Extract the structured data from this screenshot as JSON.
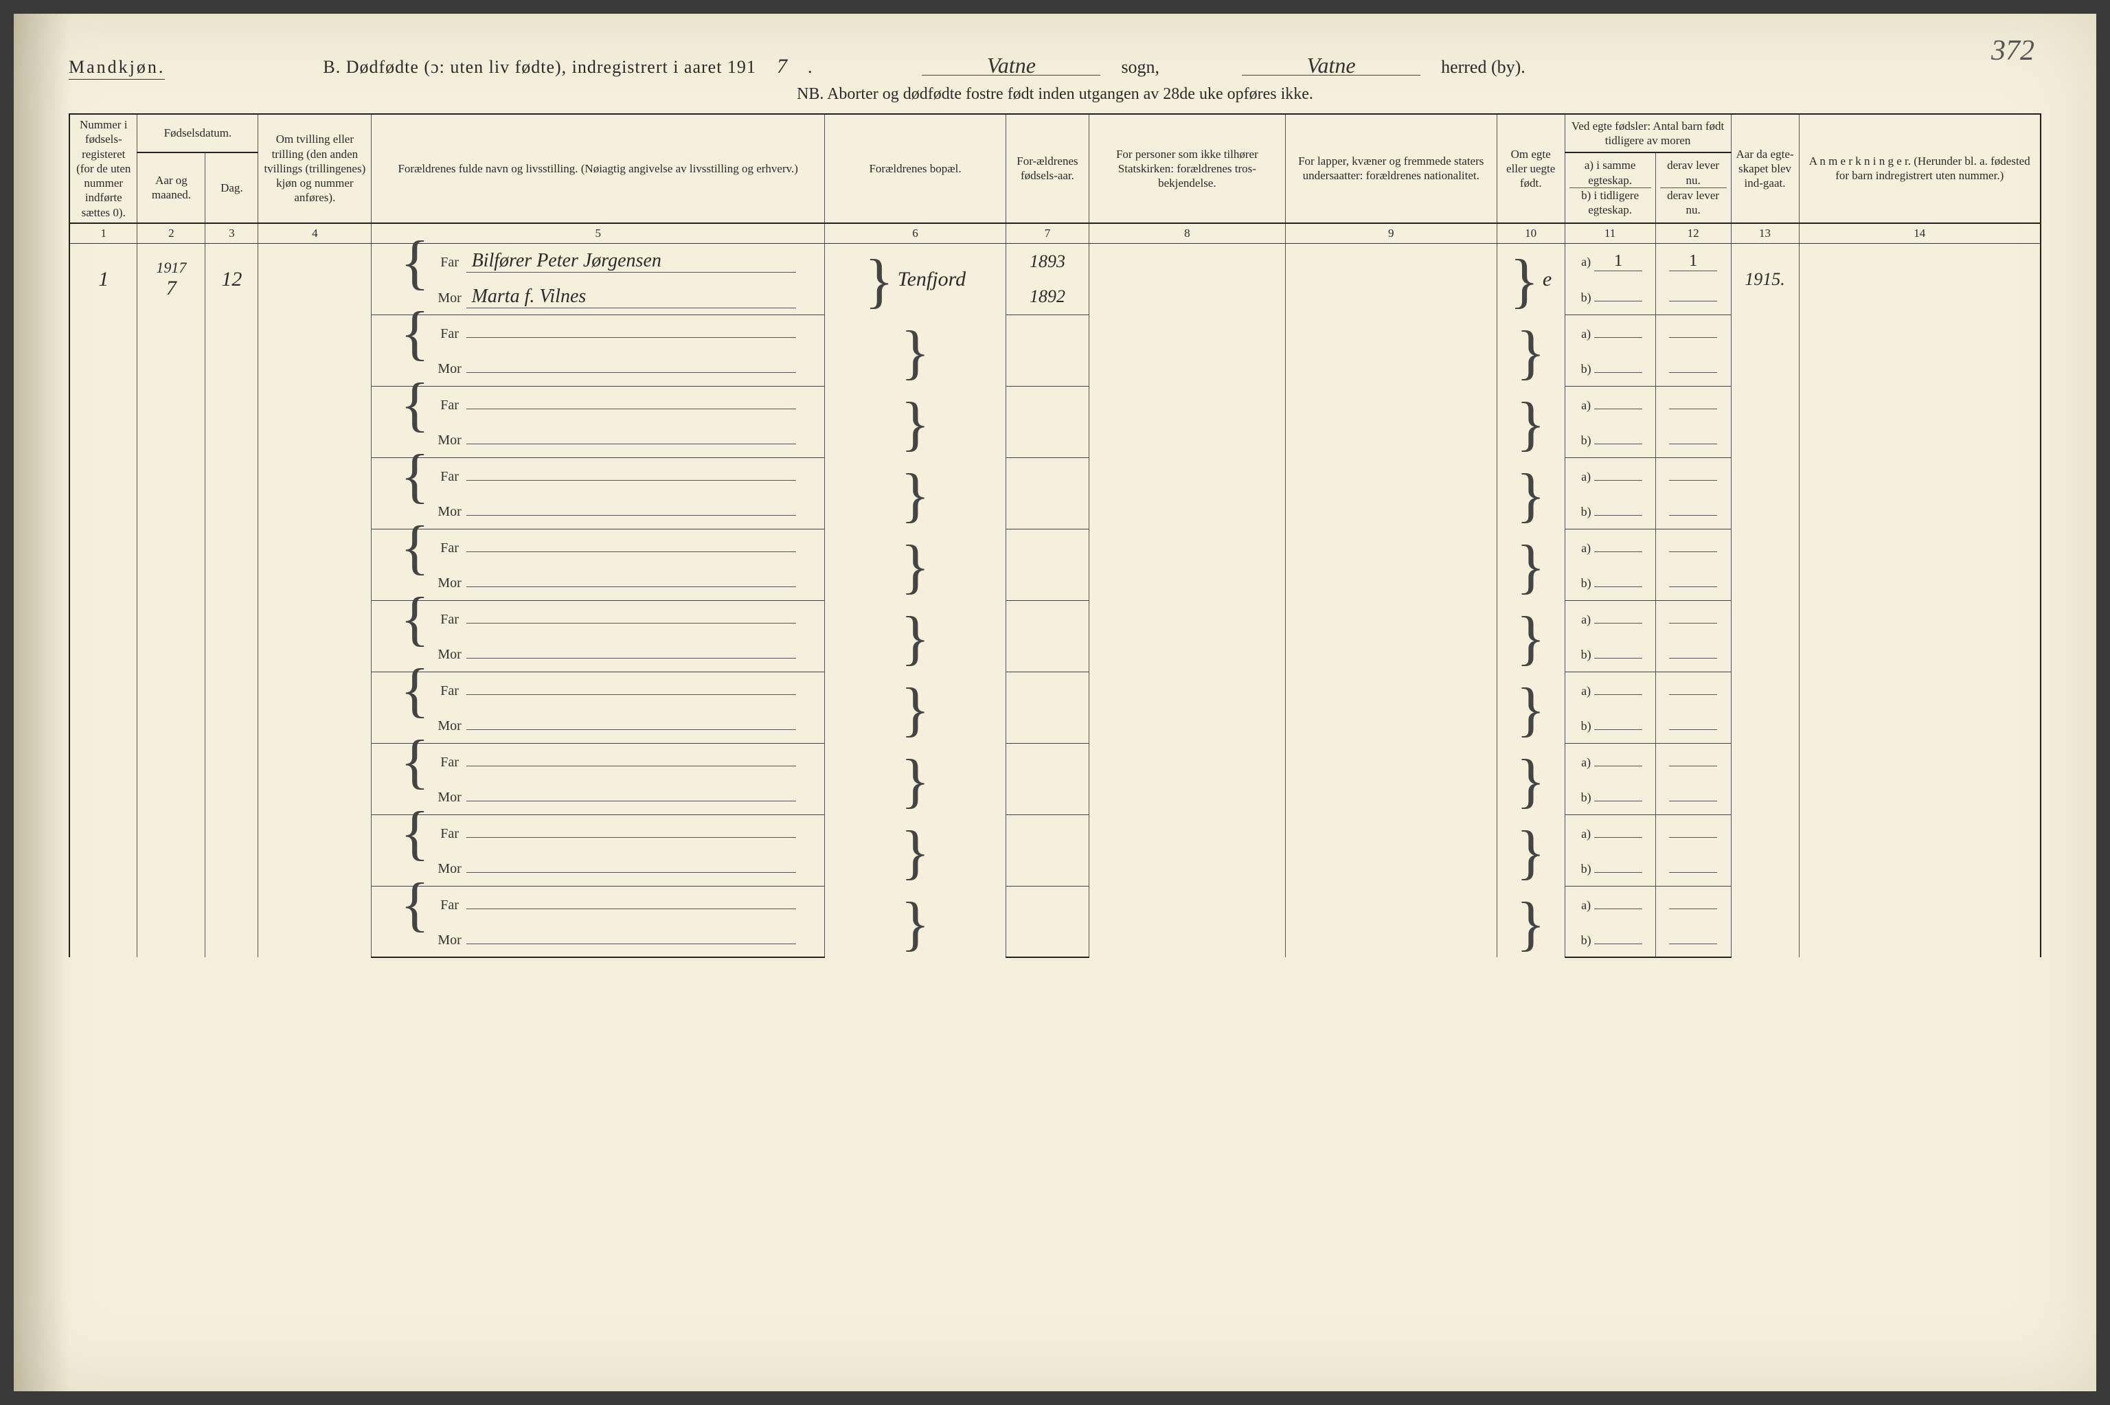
{
  "page_number_handwritten": "372",
  "header": {
    "gender": "Mandkjøn.",
    "title_prefix": "B. Dødfødte (ɔ: uten liv fødte), indregistrert i aaret 191",
    "year_last_digit": "7",
    "period": ".",
    "sogn_value": "Vatne",
    "sogn_label": "sogn,",
    "herred_value": "Vatne",
    "herred_label": "herred (by).",
    "nb_line": "NB.  Aborter og dødfødte fostre født inden utgangen av 28de uke opføres ikke."
  },
  "columns": {
    "c1": "Nummer i fødsels-registeret (for de uten nummer indførte sættes 0).",
    "c2_top": "Fødselsdatum.",
    "c2a": "Aar og maaned.",
    "c2b": "Dag.",
    "c4": "Om tvilling eller trilling (den anden tvillings (trillingenes) kjøn og nummer anføres).",
    "c5": "Forældrenes fulde navn og livsstilling.\n(Nøiagtig angivelse av livsstilling og erhverv.)",
    "c6": "Forældrenes bopæl.",
    "c7": "For-ældrenes fødsels-aar.",
    "c8": "For personer som ikke tilhører Statskirken: forældrenes tros-bekjendelse.",
    "c9": "For lapper, kvæner og fremmede staters undersaatter: forældrenes nationalitet.",
    "c10": "Om egte eller uegte født.",
    "c11_top": "Ved egte fødsler:\nAntal barn født tidligere av moren",
    "c11a": "a) i samme egteskap.",
    "c11b": "b) i tidligere egteskap.",
    "c12a": "derav lever nu.",
    "c12b": "derav lever nu.",
    "c13": "Aar da egte-skapet blev ind-gaat.",
    "c14": "A n m e r k n i n g e r.\n(Herunder bl. a. fødested for barn indregistrert uten nummer.)",
    "numbers": [
      "1",
      "2",
      "3",
      "4",
      "5",
      "6",
      "7",
      "8",
      "9",
      "10",
      "11",
      "12",
      "13",
      "14"
    ]
  },
  "labels": {
    "far": "Far",
    "mor": "Mor",
    "a": "a)",
    "b": "b)"
  },
  "entry": {
    "year_hand": "1917",
    "num": "1",
    "month": "7",
    "day": "12",
    "far_name": "Bilfører Peter Jørgensen",
    "mor_name": "Marta f. Vilnes",
    "bopal": "Tenfjord",
    "far_year": "1893",
    "mor_year": "1892",
    "egte": "e",
    "a_same": "1",
    "a_lever": "1",
    "marriage_year": "1915."
  },
  "style": {
    "paper_bg": "#f4f0dc",
    "ink": "#2a2a2a",
    "rule": "#555555",
    "heavy_rule": "#222222",
    "handwriting_color": "#2b2b2b",
    "body_fontsize_pt": 18,
    "header_fontsize_pt": 26,
    "cursive_fontsize_pt": 30,
    "num_rows": 10
  }
}
